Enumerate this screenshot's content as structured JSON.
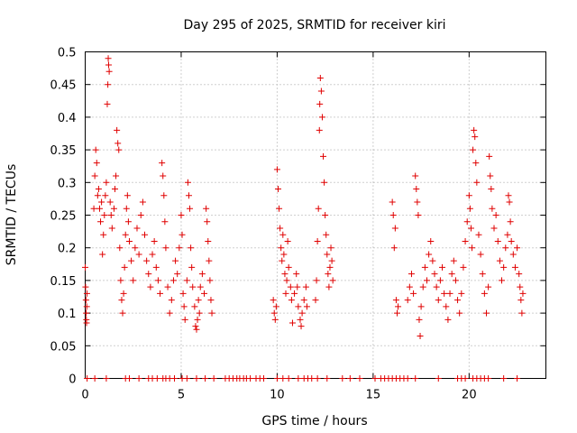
{
  "chart_data": {
    "type": "scatter",
    "title": "Day 295 of 2025, SRMTID for receiver kiri",
    "xlabel": "GPS time / hours",
    "ylabel": "SRMTID / TECUs",
    "xlim": [
      0,
      24
    ],
    "ylim": [
      0,
      0.5
    ],
    "xticks": [
      0,
      5,
      10,
      15,
      20
    ],
    "yticks": [
      0,
      0.05,
      0.1,
      0.15,
      0.2,
      0.25,
      0.3,
      0.35,
      0.4,
      0.45,
      0.5
    ],
    "xtick_labels": [
      "0",
      "5",
      "10",
      "15",
      "20"
    ],
    "ytick_labels": [
      "0",
      "0.05",
      "0.1",
      "0.15",
      "0.2",
      "0.25",
      "0.3",
      "0.35",
      "0.4",
      "0.45",
      "0.5"
    ],
    "grid": true,
    "marker": "+",
    "color": "#e00000",
    "series": [
      {
        "name": "SRMTID",
        "points": [
          [
            0.0,
            0.17
          ],
          [
            0.02,
            0.14
          ],
          [
            0.04,
            0.12
          ],
          [
            0.05,
            0.1
          ],
          [
            0.06,
            0.09
          ],
          [
            0.07,
            0.085
          ],
          [
            0.08,
            0.11
          ],
          [
            0.09,
            0.13
          ],
          [
            0.45,
            0.26
          ],
          [
            0.5,
            0.31
          ],
          [
            0.55,
            0.35
          ],
          [
            0.6,
            0.33
          ],
          [
            0.65,
            0.28
          ],
          [
            0.7,
            0.29
          ],
          [
            0.75,
            0.26
          ],
          [
            0.8,
            0.24
          ],
          [
            0.85,
            0.27
          ],
          [
            0.9,
            0.19
          ],
          [
            0.95,
            0.22
          ],
          [
            1.0,
            0.25
          ],
          [
            1.05,
            0.28
          ],
          [
            1.1,
            0.3
          ],
          [
            1.15,
            0.42
          ],
          [
            1.18,
            0.45
          ],
          [
            1.2,
            0.49
          ],
          [
            1.22,
            0.48
          ],
          [
            1.25,
            0.47
          ],
          [
            1.3,
            0.27
          ],
          [
            1.35,
            0.25
          ],
          [
            1.4,
            0.23
          ],
          [
            1.5,
            0.26
          ],
          [
            1.55,
            0.29
          ],
          [
            1.6,
            0.31
          ],
          [
            1.65,
            0.38
          ],
          [
            1.7,
            0.36
          ],
          [
            1.75,
            0.35
          ],
          [
            1.8,
            0.2
          ],
          [
            1.85,
            0.15
          ],
          [
            1.9,
            0.12
          ],
          [
            1.95,
            0.1
          ],
          [
            2.0,
            0.13
          ],
          [
            2.05,
            0.17
          ],
          [
            2.1,
            0.22
          ],
          [
            2.15,
            0.26
          ],
          [
            2.2,
            0.28
          ],
          [
            2.25,
            0.24
          ],
          [
            2.3,
            0.21
          ],
          [
            2.4,
            0.18
          ],
          [
            2.5,
            0.15
          ],
          [
            2.6,
            0.2
          ],
          [
            2.7,
            0.23
          ],
          [
            2.8,
            0.19
          ],
          [
            2.9,
            0.25
          ],
          [
            3.0,
            0.27
          ],
          [
            3.1,
            0.22
          ],
          [
            3.2,
            0.18
          ],
          [
            3.3,
            0.16
          ],
          [
            3.4,
            0.14
          ],
          [
            3.5,
            0.19
          ],
          [
            3.6,
            0.21
          ],
          [
            3.7,
            0.17
          ],
          [
            3.8,
            0.15
          ],
          [
            3.9,
            0.13
          ],
          [
            4.0,
            0.33
          ],
          [
            4.05,
            0.31
          ],
          [
            4.1,
            0.28
          ],
          [
            4.15,
            0.24
          ],
          [
            4.2,
            0.2
          ],
          [
            4.3,
            0.14
          ],
          [
            4.4,
            0.1
          ],
          [
            4.5,
            0.12
          ],
          [
            4.6,
            0.15
          ],
          [
            4.7,
            0.18
          ],
          [
            4.8,
            0.16
          ],
          [
            4.9,
            0.2
          ],
          [
            5.0,
            0.25
          ],
          [
            5.05,
            0.22
          ],
          [
            5.1,
            0.13
          ],
          [
            5.15,
            0.11
          ],
          [
            5.2,
            0.09
          ],
          [
            5.3,
            0.15
          ],
          [
            5.35,
            0.3
          ],
          [
            5.4,
            0.28
          ],
          [
            5.45,
            0.26
          ],
          [
            5.5,
            0.2
          ],
          [
            5.55,
            0.17
          ],
          [
            5.6,
            0.14
          ],
          [
            5.7,
            0.11
          ],
          [
            5.75,
            0.08
          ],
          [
            5.8,
            0.075
          ],
          [
            5.85,
            0.09
          ],
          [
            5.9,
            0.12
          ],
          [
            5.95,
            0.1
          ],
          [
            6.0,
            0.14
          ],
          [
            6.1,
            0.16
          ],
          [
            6.2,
            0.13
          ],
          [
            6.3,
            0.26
          ],
          [
            6.35,
            0.24
          ],
          [
            6.4,
            0.21
          ],
          [
            6.45,
            0.18
          ],
          [
            6.5,
            0.15
          ],
          [
            6.55,
            0.12
          ],
          [
            6.6,
            0.1
          ],
          [
            9.8,
            0.12
          ],
          [
            9.85,
            0.1
          ],
          [
            9.9,
            0.09
          ],
          [
            9.95,
            0.11
          ],
          [
            10.0,
            0.32
          ],
          [
            10.05,
            0.29
          ],
          [
            10.1,
            0.26
          ],
          [
            10.15,
            0.23
          ],
          [
            10.2,
            0.2
          ],
          [
            10.25,
            0.18
          ],
          [
            10.3,
            0.22
          ],
          [
            10.35,
            0.19
          ],
          [
            10.4,
            0.16
          ],
          [
            10.45,
            0.13
          ],
          [
            10.5,
            0.15
          ],
          [
            10.55,
            0.21
          ],
          [
            10.6,
            0.17
          ],
          [
            10.7,
            0.14
          ],
          [
            10.75,
            0.12
          ],
          [
            10.8,
            0.085
          ],
          [
            10.9,
            0.13
          ],
          [
            11.0,
            0.16
          ],
          [
            11.05,
            0.14
          ],
          [
            11.1,
            0.11
          ],
          [
            11.2,
            0.09
          ],
          [
            11.25,
            0.08
          ],
          [
            11.3,
            0.1
          ],
          [
            11.4,
            0.12
          ],
          [
            11.5,
            0.14
          ],
          [
            11.55,
            0.11
          ],
          [
            12.0,
            0.12
          ],
          [
            12.05,
            0.15
          ],
          [
            12.1,
            0.21
          ],
          [
            12.15,
            0.26
          ],
          [
            12.2,
            0.38
          ],
          [
            12.22,
            0.42
          ],
          [
            12.25,
            0.46
          ],
          [
            12.3,
            0.44
          ],
          [
            12.35,
            0.4
          ],
          [
            12.4,
            0.34
          ],
          [
            12.45,
            0.3
          ],
          [
            12.5,
            0.25
          ],
          [
            12.55,
            0.22
          ],
          [
            12.6,
            0.19
          ],
          [
            12.65,
            0.16
          ],
          [
            12.7,
            0.14
          ],
          [
            12.75,
            0.17
          ],
          [
            12.8,
            0.2
          ],
          [
            12.85,
            0.18
          ],
          [
            12.9,
            0.15
          ],
          [
            16.0,
            0.27
          ],
          [
            16.05,
            0.25
          ],
          [
            16.1,
            0.2
          ],
          [
            16.15,
            0.23
          ],
          [
            16.2,
            0.12
          ],
          [
            16.25,
            0.1
          ],
          [
            16.3,
            0.11
          ],
          [
            16.8,
            0.12
          ],
          [
            16.9,
            0.14
          ],
          [
            17.0,
            0.16
          ],
          [
            17.1,
            0.13
          ],
          [
            17.2,
            0.31
          ],
          [
            17.25,
            0.29
          ],
          [
            17.3,
            0.27
          ],
          [
            17.35,
            0.25
          ],
          [
            17.4,
            0.09
          ],
          [
            17.45,
            0.065
          ],
          [
            17.5,
            0.11
          ],
          [
            17.6,
            0.14
          ],
          [
            17.7,
            0.17
          ],
          [
            17.8,
            0.15
          ],
          [
            17.9,
            0.19
          ],
          [
            18.0,
            0.21
          ],
          [
            18.1,
            0.18
          ],
          [
            18.2,
            0.16
          ],
          [
            18.3,
            0.14
          ],
          [
            18.4,
            0.12
          ],
          [
            18.5,
            0.15
          ],
          [
            18.6,
            0.17
          ],
          [
            18.7,
            0.13
          ],
          [
            18.8,
            0.11
          ],
          [
            18.9,
            0.09
          ],
          [
            19.0,
            0.13
          ],
          [
            19.1,
            0.16
          ],
          [
            19.2,
            0.18
          ],
          [
            19.3,
            0.15
          ],
          [
            19.4,
            0.12
          ],
          [
            19.5,
            0.1
          ],
          [
            19.6,
            0.13
          ],
          [
            19.7,
            0.17
          ],
          [
            19.8,
            0.21
          ],
          [
            19.9,
            0.24
          ],
          [
            20.0,
            0.28
          ],
          [
            20.05,
            0.26
          ],
          [
            20.1,
            0.23
          ],
          [
            20.15,
            0.2
          ],
          [
            20.2,
            0.35
          ],
          [
            20.25,
            0.38
          ],
          [
            20.3,
            0.37
          ],
          [
            20.35,
            0.33
          ],
          [
            20.4,
            0.3
          ],
          [
            20.5,
            0.22
          ],
          [
            20.6,
            0.19
          ],
          [
            20.7,
            0.16
          ],
          [
            20.8,
            0.13
          ],
          [
            20.9,
            0.1
          ],
          [
            21.0,
            0.14
          ],
          [
            21.05,
            0.34
          ],
          [
            21.1,
            0.31
          ],
          [
            21.15,
            0.29
          ],
          [
            21.2,
            0.26
          ],
          [
            21.3,
            0.23
          ],
          [
            21.4,
            0.25
          ],
          [
            21.5,
            0.21
          ],
          [
            21.6,
            0.18
          ],
          [
            21.7,
            0.15
          ],
          [
            21.8,
            0.17
          ],
          [
            21.9,
            0.2
          ],
          [
            22.0,
            0.22
          ],
          [
            22.05,
            0.28
          ],
          [
            22.1,
            0.27
          ],
          [
            22.15,
            0.24
          ],
          [
            22.2,
            0.21
          ],
          [
            22.3,
            0.19
          ],
          [
            22.4,
            0.17
          ],
          [
            22.5,
            0.2
          ],
          [
            22.6,
            0.16
          ],
          [
            22.65,
            0.14
          ],
          [
            22.7,
            0.12
          ],
          [
            22.75,
            0.1
          ],
          [
            22.8,
            0.13
          ],
          [
            0.1,
            0.0
          ],
          [
            0.5,
            0.0
          ],
          [
            1.1,
            0.0
          ],
          [
            2.1,
            0.0
          ],
          [
            2.3,
            0.0
          ],
          [
            2.8,
            0.0
          ],
          [
            3.3,
            0.0
          ],
          [
            3.5,
            0.0
          ],
          [
            3.75,
            0.0
          ],
          [
            4.05,
            0.0
          ],
          [
            4.2,
            0.0
          ],
          [
            4.4,
            0.0
          ],
          [
            4.65,
            0.0
          ],
          [
            5.05,
            0.0
          ],
          [
            5.3,
            0.0
          ],
          [
            5.8,
            0.0
          ],
          [
            6.25,
            0.0
          ],
          [
            6.7,
            0.0
          ],
          [
            7.3,
            0.0
          ],
          [
            7.5,
            0.0
          ],
          [
            7.7,
            0.0
          ],
          [
            7.9,
            0.0
          ],
          [
            8.05,
            0.0
          ],
          [
            8.25,
            0.0
          ],
          [
            8.4,
            0.0
          ],
          [
            8.6,
            0.0
          ],
          [
            8.9,
            0.0
          ],
          [
            9.1,
            0.0
          ],
          [
            9.3,
            0.0
          ],
          [
            10.0,
            0.0
          ],
          [
            10.3,
            0.0
          ],
          [
            10.6,
            0.0
          ],
          [
            11.1,
            0.0
          ],
          [
            11.4,
            0.0
          ],
          [
            11.6,
            0.0
          ],
          [
            11.8,
            0.0
          ],
          [
            12.1,
            0.0
          ],
          [
            12.6,
            0.0
          ],
          [
            13.4,
            0.0
          ],
          [
            13.8,
            0.0
          ],
          [
            14.3,
            0.0
          ],
          [
            15.1,
            0.0
          ],
          [
            15.4,
            0.0
          ],
          [
            15.6,
            0.0
          ],
          [
            15.8,
            0.0
          ],
          [
            16.0,
            0.0
          ],
          [
            16.2,
            0.0
          ],
          [
            16.4,
            0.0
          ],
          [
            16.6,
            0.0
          ],
          [
            16.8,
            0.0
          ],
          [
            17.2,
            0.0
          ],
          [
            18.4,
            0.0
          ],
          [
            19.4,
            0.0
          ],
          [
            19.6,
            0.0
          ],
          [
            19.8,
            0.0
          ],
          [
            20.2,
            0.0
          ],
          [
            20.4,
            0.0
          ],
          [
            20.6,
            0.0
          ],
          [
            20.8,
            0.0
          ],
          [
            21.0,
            0.0
          ],
          [
            21.8,
            0.0
          ],
          [
            22.5,
            0.0
          ]
        ]
      }
    ]
  }
}
